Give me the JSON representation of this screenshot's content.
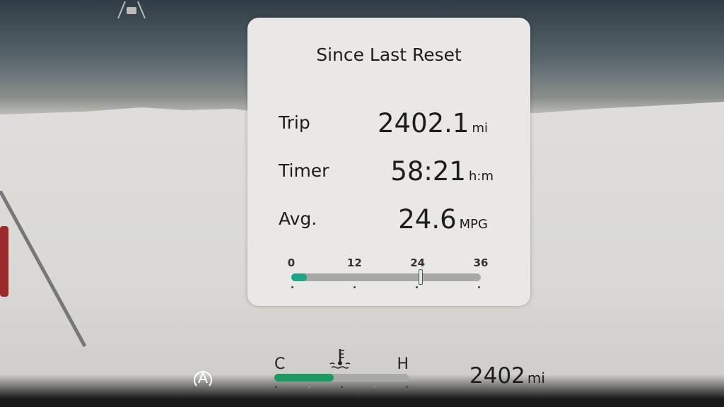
{
  "trip_card": {
    "title": "Since Last Reset",
    "trip": {
      "label": "Trip",
      "value": "2402.1",
      "unit": "mi"
    },
    "timer": {
      "label": "Timer",
      "value": "58:21",
      "unit": "h:m"
    },
    "average": {
      "label": "Avg.",
      "value": "24.6",
      "unit": "MPG"
    },
    "mpg_gauge": {
      "ticks": [
        "0",
        "12",
        "24",
        "36"
      ],
      "min": 0,
      "max": 36,
      "current_fill": 2.5,
      "average_marker": 24.6,
      "fill_color": "#1fa58a"
    }
  },
  "coolant_gauge": {
    "cold_label": "C",
    "hot_label": "H",
    "icon": "coolant-temperature-icon",
    "level_percent": 44,
    "fill_color": "#1c9a62"
  },
  "auto_hold_icon": "auto-hold-icon",
  "lane_assist_icon": "car-lane-icon",
  "odometer": {
    "value": "2402",
    "unit": "mi"
  }
}
